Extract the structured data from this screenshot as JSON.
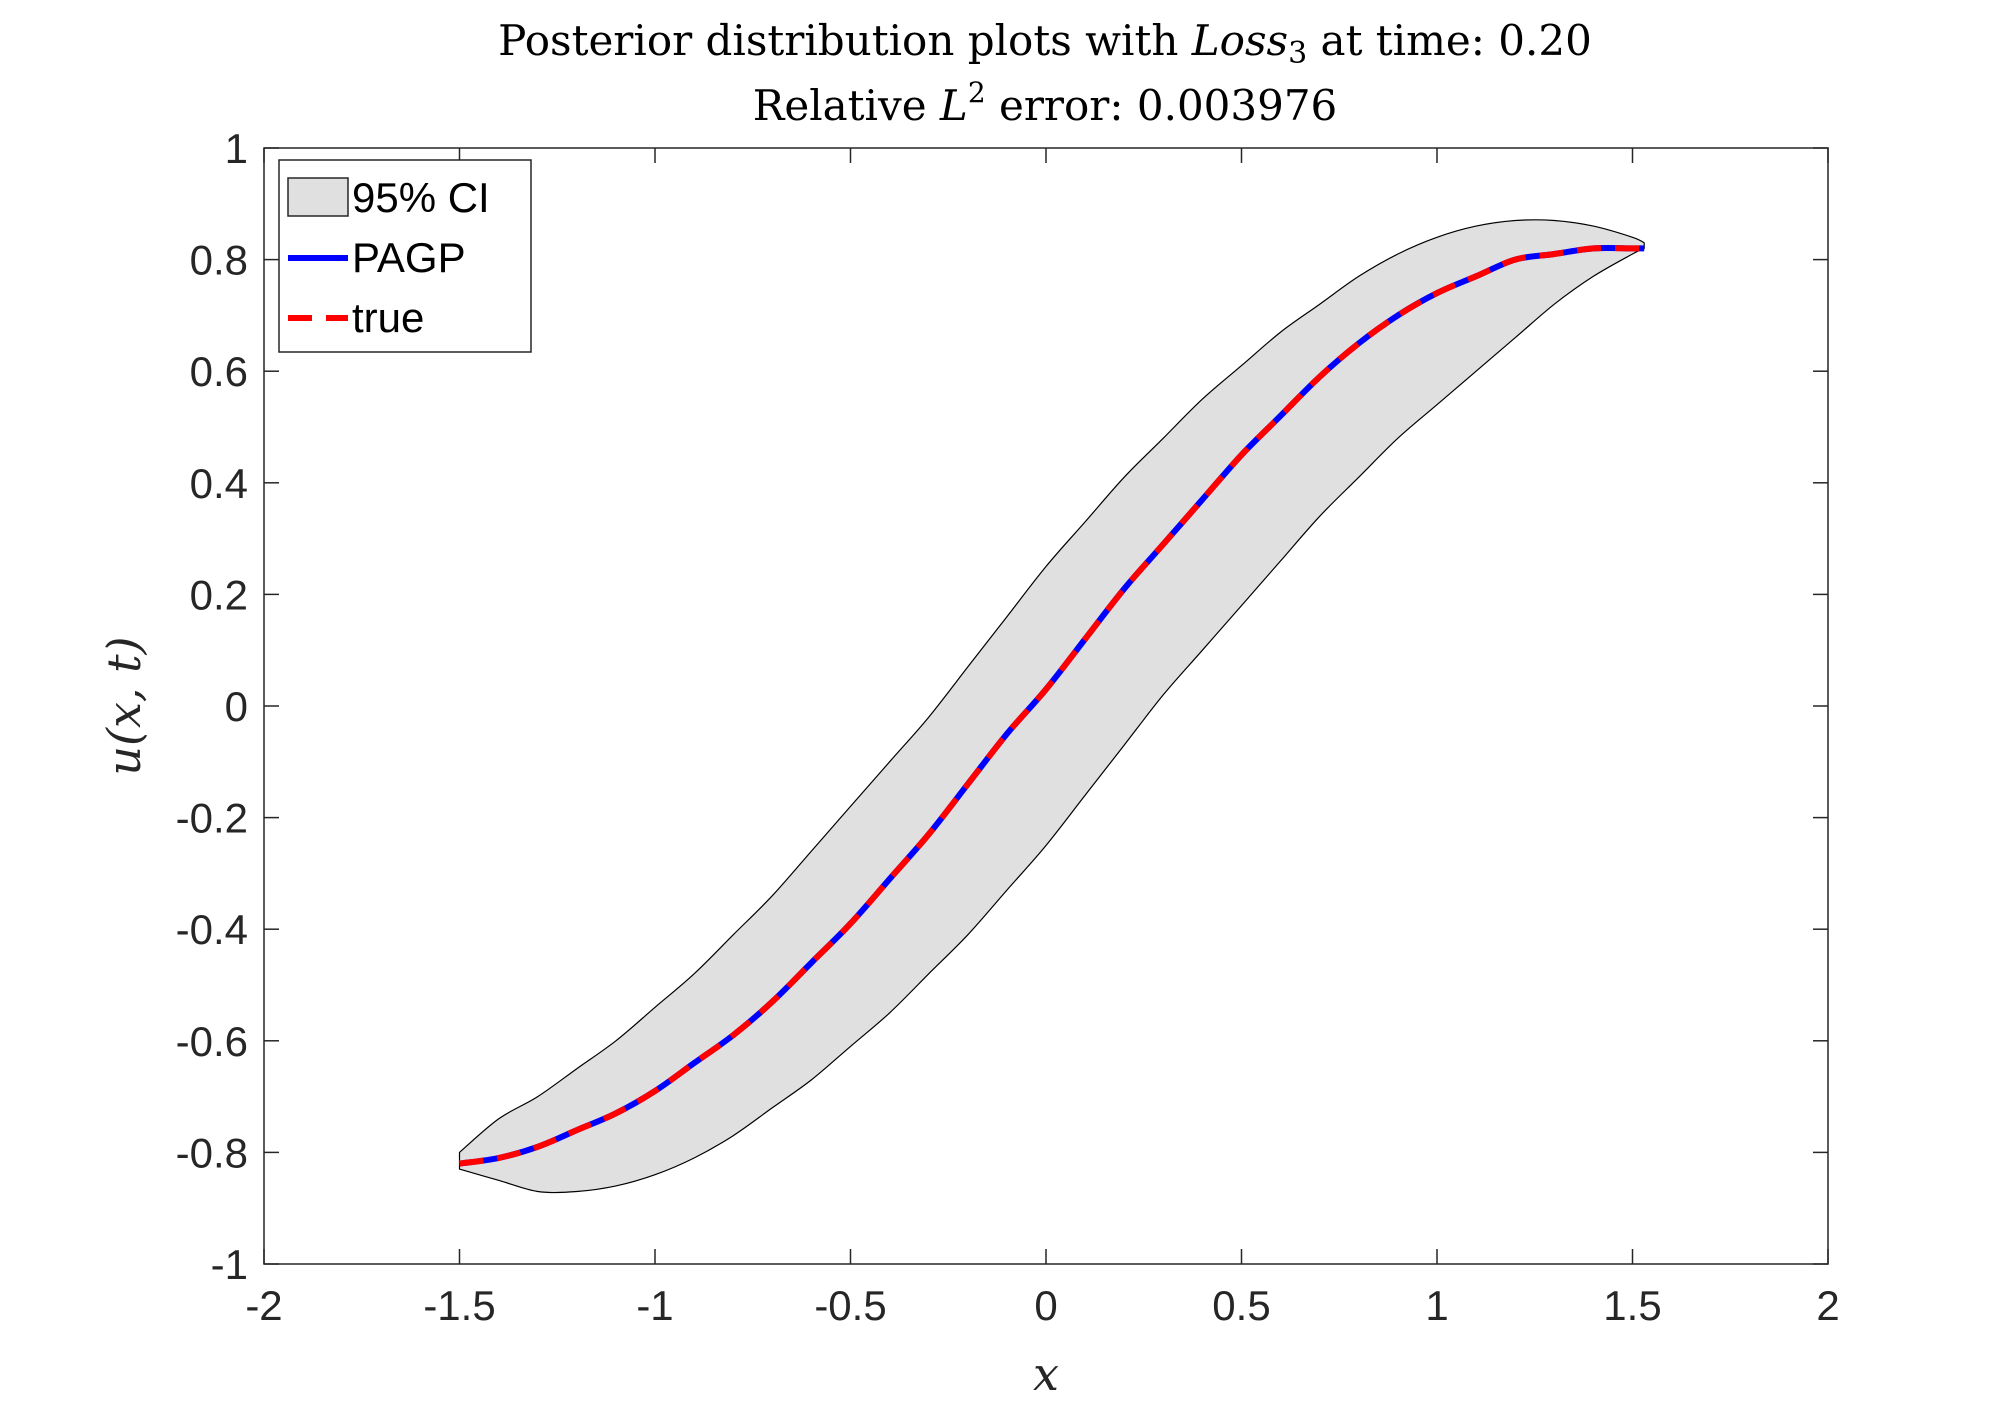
{
  "chart_data": {
    "type": "area",
    "title": {
      "prefix": "Posterior distribution plots with ",
      "loss_italic": "Loss",
      "loss_subscript": "3",
      "suffix": " at time: 0.20",
      "line2_prefix": "Relative ",
      "line2_L": "L",
      "line2_sup": "2",
      "line2_suffix": " error: 0.003976"
    },
    "xlabel": "x",
    "ylabel": "u(x, t)",
    "xlim": [
      -2,
      2
    ],
    "ylim": [
      -1,
      1
    ],
    "xticks": [
      -2,
      -1.5,
      -1,
      -0.5,
      0,
      0.5,
      1,
      1.5,
      2
    ],
    "xtick_labels": [
      "-2",
      "-1.5",
      "-1",
      "-0.5",
      "0",
      "0.5",
      "1",
      "1.5",
      "2"
    ],
    "yticks": [
      -1,
      -0.8,
      -0.6,
      -0.4,
      -0.2,
      0,
      0.2,
      0.4,
      0.6,
      0.8,
      1
    ],
    "ytick_labels": [
      "-1",
      "-0.8",
      "-0.6",
      "-0.4",
      "-0.2",
      "0",
      "0.2",
      "0.4",
      "0.6",
      "0.8",
      "1"
    ],
    "grid": false,
    "legend_position": "top-left",
    "legend": [
      {
        "label": "95% CI",
        "kind": "patch",
        "color": "#e0e0e0"
      },
      {
        "label": "PAGP",
        "kind": "line",
        "color": "#0000ff"
      },
      {
        "label": "true",
        "kind": "dashed",
        "color": "#ff0000"
      }
    ],
    "x": [
      -1.5,
      -1.4,
      -1.3,
      -1.2,
      -1.1,
      -1.0,
      -0.9,
      -0.8,
      -0.7,
      -0.6,
      -0.5,
      -0.4,
      -0.3,
      -0.2,
      -0.1,
      0.0,
      0.1,
      0.2,
      0.3,
      0.4,
      0.5,
      0.6,
      0.7,
      0.8,
      0.9,
      1.0,
      1.1,
      1.2,
      1.3,
      1.4,
      1.5,
      1.53
    ],
    "series": [
      {
        "name": "95% CI",
        "kind": "band",
        "color": "#e0e0e0",
        "upper": [
          -0.8,
          -0.74,
          -0.7,
          -0.65,
          -0.6,
          -0.54,
          -0.48,
          -0.41,
          -0.34,
          -0.26,
          -0.18,
          -0.1,
          -0.02,
          0.07,
          0.16,
          0.25,
          0.33,
          0.41,
          0.48,
          0.55,
          0.61,
          0.67,
          0.72,
          0.77,
          0.81,
          0.84,
          0.86,
          0.87,
          0.87,
          0.86,
          0.84,
          0.83
        ],
        "lower": [
          -0.83,
          -0.85,
          -0.87,
          -0.87,
          -0.86,
          -0.84,
          -0.81,
          -0.77,
          -0.72,
          -0.67,
          -0.61,
          -0.55,
          -0.48,
          -0.41,
          -0.33,
          -0.25,
          -0.16,
          -0.07,
          0.02,
          0.1,
          0.18,
          0.26,
          0.34,
          0.41,
          0.48,
          0.54,
          0.6,
          0.66,
          0.72,
          0.77,
          0.81,
          0.82
        ]
      },
      {
        "name": "PAGP",
        "kind": "line",
        "color": "#0000ff",
        "values": [
          -0.82,
          -0.81,
          -0.79,
          -0.76,
          -0.73,
          -0.69,
          -0.64,
          -0.59,
          -0.53,
          -0.46,
          -0.39,
          -0.31,
          -0.23,
          -0.14,
          -0.05,
          0.03,
          0.12,
          0.21,
          0.29,
          0.37,
          0.45,
          0.52,
          0.59,
          0.65,
          0.7,
          0.74,
          0.77,
          0.8,
          0.81,
          0.82,
          0.82,
          0.82
        ]
      },
      {
        "name": "true",
        "kind": "dashed",
        "color": "#ff0000",
        "values": [
          -0.82,
          -0.81,
          -0.79,
          -0.76,
          -0.73,
          -0.69,
          -0.64,
          -0.59,
          -0.53,
          -0.46,
          -0.39,
          -0.31,
          -0.23,
          -0.14,
          -0.05,
          0.03,
          0.12,
          0.21,
          0.29,
          0.37,
          0.45,
          0.52,
          0.59,
          0.65,
          0.7,
          0.74,
          0.77,
          0.8,
          0.81,
          0.82,
          0.82,
          0.82
        ]
      }
    ]
  }
}
